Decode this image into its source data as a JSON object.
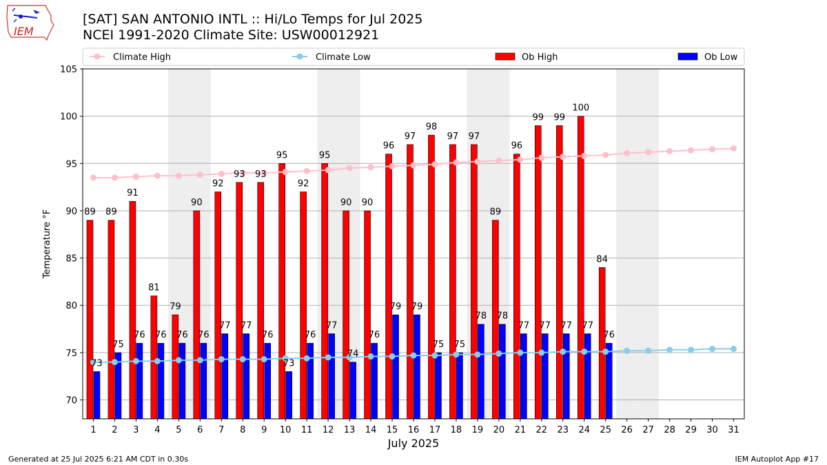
{
  "header": {
    "title_line1": "[SAT] SAN ANTONIO INTL :: Hi/Lo Temps for Jul 2025",
    "title_line2": "NCEI 1991-2020 Climate Site: USW00012921",
    "logo_text": "IEM"
  },
  "footer": {
    "left": "Generated at 25 Jul 2025 6:21 AM CDT in 0.30s",
    "right": "IEM Autoplot App #17"
  },
  "chart_data": {
    "type": "bar",
    "xlabel": "July 2025",
    "ylabel": "Temperature °F",
    "ylim": [
      68,
      105
    ],
    "yticks": [
      70,
      75,
      80,
      85,
      90,
      95,
      100,
      105
    ],
    "grid": "y",
    "legend_position": "top",
    "weekend_days": [
      5,
      6,
      12,
      13,
      19,
      20,
      26,
      27
    ],
    "categories": [
      "1",
      "2",
      "3",
      "4",
      "5",
      "6",
      "7",
      "8",
      "9",
      "10",
      "11",
      "12",
      "13",
      "14",
      "15",
      "16",
      "17",
      "18",
      "19",
      "20",
      "21",
      "22",
      "23",
      "24",
      "25",
      "26",
      "27",
      "28",
      "29",
      "30",
      "31"
    ],
    "bar_series": [
      {
        "name": "Ob High",
        "color": "#ff0000",
        "values": [
          89,
          89,
          91,
          81,
          79,
          90,
          92,
          93,
          93,
          95,
          92,
          95,
          90,
          90,
          96,
          97,
          98,
          97,
          97,
          89,
          96,
          99,
          99,
          100,
          84
        ]
      },
      {
        "name": "Ob Low",
        "color": "#0000ff",
        "values": [
          73,
          75,
          76,
          76,
          76,
          76,
          77,
          77,
          76,
          73,
          76,
          77,
          74,
          76,
          79,
          79,
          75,
          75,
          78,
          78,
          77,
          77,
          77,
          77,
          76
        ]
      }
    ],
    "line_series": [
      {
        "name": "Climate High",
        "color": "#ffc0cb",
        "values": [
          93.5,
          93.5,
          93.6,
          93.7,
          93.7,
          93.8,
          93.9,
          94.0,
          94.0,
          94.1,
          94.2,
          94.3,
          94.5,
          94.6,
          94.7,
          94.8,
          94.9,
          95.1,
          95.2,
          95.3,
          95.4,
          95.6,
          95.7,
          95.8,
          95.9,
          96.1,
          96.2,
          96.3,
          96.4,
          96.5,
          96.6
        ]
      },
      {
        "name": "Climate Low",
        "color": "#87ceeb",
        "values": [
          74.0,
          74.0,
          74.1,
          74.1,
          74.2,
          74.2,
          74.3,
          74.3,
          74.3,
          74.4,
          74.4,
          74.5,
          74.5,
          74.6,
          74.6,
          74.7,
          74.7,
          74.8,
          74.8,
          74.9,
          75.0,
          75.0,
          75.1,
          75.1,
          75.1,
          75.2,
          75.2,
          75.3,
          75.3,
          75.4,
          75.4
        ]
      }
    ]
  }
}
